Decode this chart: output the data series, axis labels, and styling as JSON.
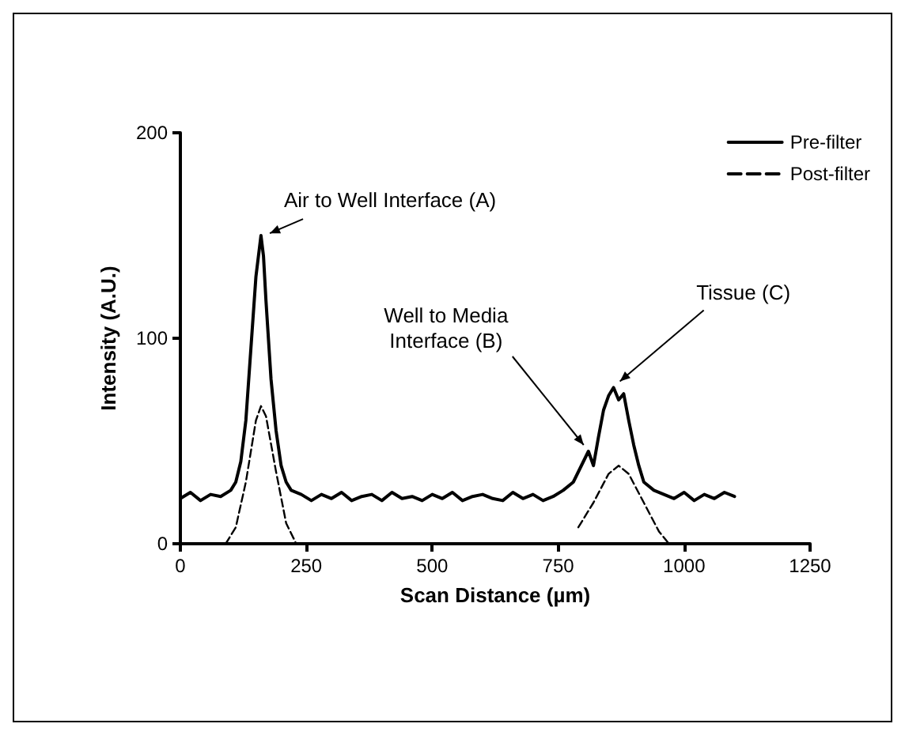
{
  "chart_data": {
    "type": "line",
    "xlabel": "Scan Distance (µm)",
    "ylabel": "Intensity (A.U.)",
    "xlim": [
      0,
      1250
    ],
    "xticks": [
      0,
      250,
      500,
      750,
      1000,
      1250
    ],
    "ylim": [
      0,
      200
    ],
    "yticks": [
      0,
      100,
      200
    ],
    "grid": false,
    "legend": "top right",
    "marker": "none",
    "series": [
      {
        "name": "Pre-filter",
        "color": "#000000",
        "line_style": "solid",
        "x": [
          0,
          20,
          40,
          60,
          80,
          100,
          110,
          120,
          130,
          140,
          150,
          160,
          165,
          170,
          180,
          190,
          200,
          210,
          220,
          240,
          260,
          280,
          300,
          320,
          340,
          360,
          380,
          400,
          420,
          440,
          460,
          480,
          500,
          520,
          540,
          560,
          580,
          600,
          620,
          640,
          660,
          680,
          700,
          720,
          740,
          760,
          780,
          800,
          810,
          820,
          830,
          840,
          850,
          860,
          870,
          880,
          890,
          900,
          910,
          920,
          940,
          960,
          980,
          1000,
          1020,
          1040,
          1060,
          1080,
          1100
        ],
        "values": [
          22,
          25,
          21,
          24,
          23,
          26,
          30,
          40,
          60,
          95,
          130,
          150,
          140,
          118,
          80,
          55,
          38,
          30,
          26,
          24,
          21,
          24,
          22,
          25,
          21,
          23,
          24,
          21,
          25,
          22,
          23,
          21,
          24,
          22,
          25,
          21,
          23,
          24,
          22,
          21,
          25,
          22,
          24,
          21,
          23,
          26,
          30,
          40,
          45,
          38,
          52,
          65,
          72,
          76,
          70,
          73,
          60,
          48,
          38,
          30,
          26,
          24,
          22,
          25,
          21,
          24,
          22,
          25,
          23
        ]
      },
      {
        "name": "Post-filter",
        "color": "#000000",
        "line_style": "dashed",
        "x": [
          90,
          110,
          130,
          150,
          160,
          170,
          190,
          210,
          230,
          760,
          790,
          820,
          850,
          870,
          890,
          920,
          950,
          970
        ],
        "values": [
          0,
          8,
          30,
          60,
          67,
          62,
          35,
          10,
          0,
          null,
          8,
          20,
          34,
          38,
          34,
          20,
          6,
          0
        ]
      }
    ],
    "annotations": [
      {
        "text": "Air to Well Interface (A)",
        "x": 165,
        "y": 148
      },
      {
        "text": "Well to Media\nInterface (B)",
        "x": 810,
        "y": 45
      },
      {
        "text": "Tissue (C)",
        "x": 860,
        "y": 76
      }
    ]
  }
}
